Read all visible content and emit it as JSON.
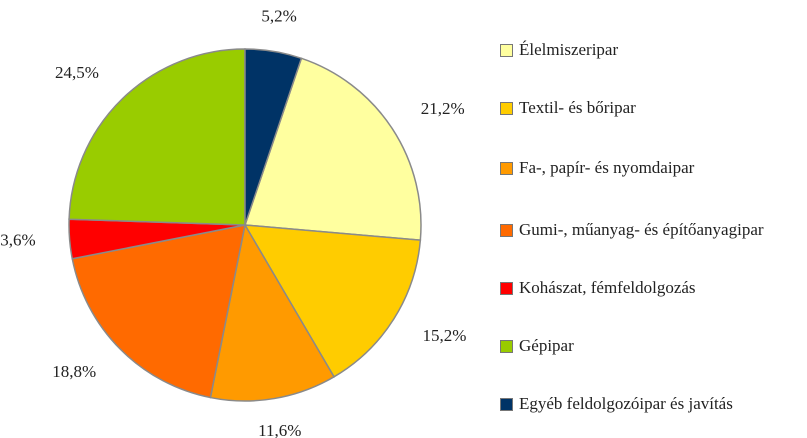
{
  "chart_data": {
    "type": "pie",
    "categories": [
      "Élelmiszeripar",
      "Textil- és bőripar",
      "Fa-, papír- és nyomdaipar",
      "Gumi-, műanyag- és építőanyagipar",
      "Kohászat, fémfeldolgozás",
      "Gépipar",
      "Egyéb feldolgozóipar és javítás"
    ],
    "values": [
      21.2,
      15.2,
      11.6,
      18.8,
      3.6,
      24.5,
      5.2
    ],
    "value_labels": [
      "21,2%",
      "15,2%",
      "11,6%",
      "18,8%",
      "3,6%",
      "24,5%",
      "5,2%"
    ],
    "colors": [
      "#ffff9f",
      "#ffcc00",
      "#ff9a00",
      "#ff6a00",
      "#ff0000",
      "#99cc00",
      "#003366"
    ],
    "legend": "right"
  }
}
